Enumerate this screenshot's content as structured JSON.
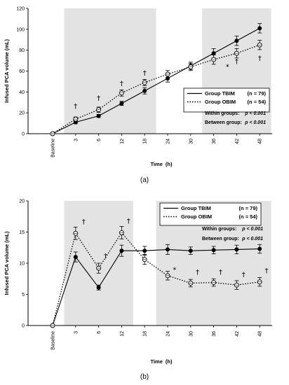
{
  "chart_data": [
    {
      "type": "line",
      "caption": "(a)",
      "xlabel": "Time",
      "xunit": "(h)",
      "ylabel": "Infused PCA volume (mL)",
      "ylim": [
        0,
        120
      ],
      "yticks": [
        0,
        20,
        40,
        60,
        80,
        100,
        120
      ],
      "categories": [
        "Baseline",
        "3",
        "6",
        "12",
        "18",
        "24",
        "30",
        "36",
        "42",
        "48"
      ],
      "shaded_ranges": [
        [
          1,
          4
        ],
        [
          7,
          9
        ]
      ],
      "series": [
        {
          "name": "Group TBIM",
          "n_label": "(n = 79)",
          "style": "solid",
          "marker": "filled",
          "values": [
            0,
            11,
            17,
            29,
            41,
            53,
            65,
            77,
            89,
            101
          ],
          "errors": [
            0,
            1.5,
            1.5,
            2,
            3,
            3.5,
            3.5,
            4.5,
            4.5,
            4.5
          ]
        },
        {
          "name": "Group OBIM",
          "n_label": "(n = 54)",
          "style": "dotted",
          "marker": "open",
          "values": [
            0,
            14,
            23,
            39,
            49,
            57,
            64,
            71,
            77,
            85
          ],
          "errors": [
            0,
            2,
            2.5,
            3,
            3,
            3.5,
            3.5,
            4.5,
            4.5,
            4.5
          ]
        }
      ],
      "daggers": [
        {
          "x": 1,
          "y": 24
        },
        {
          "x": 2,
          "y": 32
        },
        {
          "x": 3,
          "y": 46
        },
        {
          "x": 4,
          "y": 56
        },
        {
          "x": 8,
          "y": 67
        },
        {
          "x": 9,
          "y": 70
        }
      ],
      "asterisks": [
        {
          "x": 7.6,
          "y": 62
        }
      ],
      "stats": {
        "within": {
          "label": "Within groups:",
          "p": "p < 0.001"
        },
        "between": {
          "label": "Between group:",
          "p": "p < 0.001"
        }
      },
      "legend_position": "lower-right",
      "symbols": {
        "dagger": "†",
        "asterisk": "*"
      }
    },
    {
      "type": "line",
      "caption": "(b)",
      "xlabel": "Time",
      "xunit": "(h)",
      "ylabel": "Infused PCA volume (mL)",
      "ylim": [
        0,
        20
      ],
      "yticks": [
        0,
        5,
        10,
        15,
        20
      ],
      "categories": [
        "Baseline",
        "3",
        "6",
        "12",
        "18",
        "24",
        "30",
        "36",
        "42",
        "48"
      ],
      "shaded_ranges": [
        [
          1,
          3
        ],
        [
          5,
          9
        ]
      ],
      "series": [
        {
          "name": "Group TBIM",
          "n_label": "(n = 79)",
          "style": "solid",
          "marker": "filled",
          "values": [
            0,
            11,
            6.1,
            12,
            12,
            12.2,
            12,
            12.1,
            12.2,
            12.3
          ],
          "errors": [
            0,
            0.8,
            0.4,
            0.9,
            0.7,
            0.8,
            0.6,
            0.6,
            0.7,
            0.7
          ]
        },
        {
          "name": "Group OBIM",
          "n_label": "(n = 54)",
          "style": "dotted",
          "marker": "open",
          "values": [
            0,
            14.8,
            9.2,
            14.9,
            10.6,
            8,
            6.8,
            6.9,
            6.5,
            7
          ],
          "errors": [
            0,
            1,
            0.8,
            1,
            0.8,
            0.7,
            0.6,
            0.6,
            0.7,
            0.7
          ]
        }
      ],
      "daggers": [
        {
          "x": 1.35,
          "y": 16.3
        },
        {
          "x": 2.3,
          "y": 10.8
        },
        {
          "x": 3.3,
          "y": 16.4
        },
        {
          "x": 6.3,
          "y": 8.2
        },
        {
          "x": 7.3,
          "y": 8.2
        },
        {
          "x": 8.3,
          "y": 7.8
        },
        {
          "x": 9.3,
          "y": 8.4
        }
      ],
      "asterisks": [
        {
          "x": 5.3,
          "y": 8.6
        }
      ],
      "stats": {
        "within": {
          "label": "Within groups:",
          "p": "p < 0.001"
        },
        "between": {
          "label": "Between group:",
          "p": "p < 0.001"
        }
      },
      "legend_position": "top-right",
      "symbols": {
        "dagger": "†",
        "asterisk": "*"
      }
    }
  ]
}
